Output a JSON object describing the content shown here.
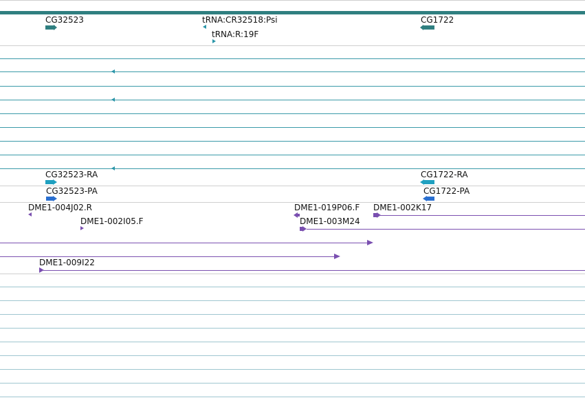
{
  "colors": {
    "gene": "#2f7f80",
    "trna": "#2a95a8",
    "transcript_ra": "#1fa0c0",
    "transcript_pa": "#2a6fd0",
    "clone": "#7a4fb0",
    "track_line_teal": "#3a9aa8",
    "track_line_grey": "#cfcfcf"
  },
  "genes_track": {
    "labels": {
      "cg32523": "CG32523",
      "trna_psi": "tRNA:CR32518:Psi",
      "trna_r19f": "tRNA:R:19F",
      "cg1722": "CG1722"
    }
  },
  "transcripts_track": {
    "labels": {
      "cg32523_ra": "CG32523-RA",
      "cg32523_pa": "CG32523-PA",
      "cg1722_ra": "CG1722-RA",
      "cg1722_pa": "CG1722-PA"
    }
  },
  "clones_track": {
    "labels": {
      "dme1_004j02_r": "DME1-004J02.R",
      "dme1_002i05_f": "DME1-002I05.F",
      "dme1_019p06_f": "DME1-019P06.F",
      "dme1_002k17": "DME1-002K17",
      "dme1_003m24": "DME1-003M24",
      "dme1_009i22": "DME1-009I22"
    }
  }
}
